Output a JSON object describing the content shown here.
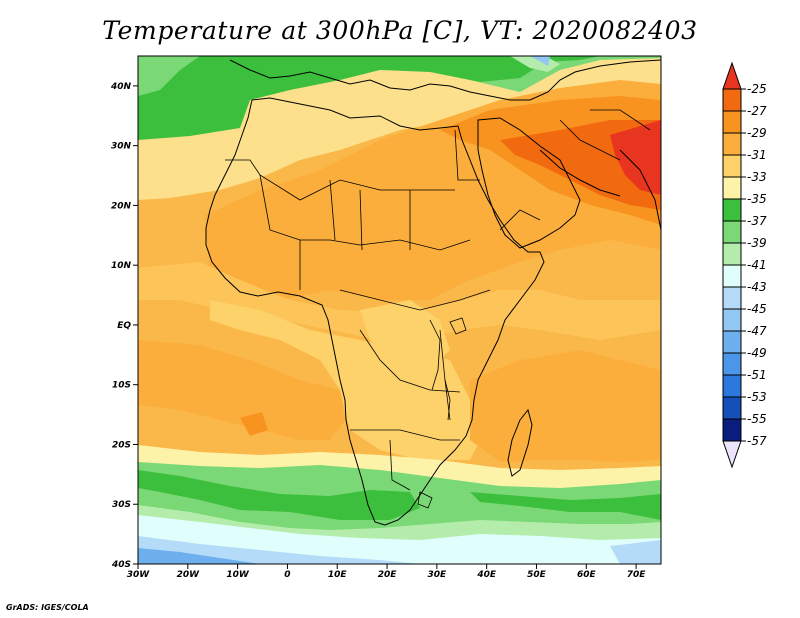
{
  "title": "Temperature at 300hPa [C], VT: 2020082403",
  "credit": "GrADS: IGES/COLA",
  "map": {
    "lon_range": [
      -30,
      75
    ],
    "lat_range": [
      -40,
      45
    ],
    "lon_ticks": [
      {
        "value": -30,
        "label": "30W"
      },
      {
        "value": -20,
        "label": "20W"
      },
      {
        "value": -10,
        "label": "10W"
      },
      {
        "value": 0,
        "label": "0"
      },
      {
        "value": 10,
        "label": "10E"
      },
      {
        "value": 20,
        "label": "20E"
      },
      {
        "value": 30,
        "label": "30E"
      },
      {
        "value": 40,
        "label": "40E"
      },
      {
        "value": 50,
        "label": "50E"
      },
      {
        "value": 60,
        "label": "60E"
      },
      {
        "value": 70,
        "label": "70E"
      }
    ],
    "lat_ticks": [
      {
        "value": 40,
        "label": "40N"
      },
      {
        "value": 30,
        "label": "30N"
      },
      {
        "value": 20,
        "label": "20N"
      },
      {
        "value": 10,
        "label": "10N"
      },
      {
        "value": 0,
        "label": "EQ"
      },
      {
        "value": -10,
        "label": "10S"
      },
      {
        "value": -20,
        "label": "20S"
      },
      {
        "value": -30,
        "label": "30S"
      },
      {
        "value": -40,
        "label": "40S"
      }
    ]
  },
  "colorbar": {
    "labels": [
      "-25",
      "-27",
      "-29",
      "-31",
      "-33",
      "-35",
      "-37",
      "-39",
      "-41",
      "-43",
      "-45",
      "-47",
      "-49",
      "-51",
      "-53",
      "-55",
      "-57"
    ],
    "colors": [
      "#e8351f",
      "#f26a0f",
      "#f99320",
      "#fbae3c",
      "#fdd26a",
      "#fdf3a8",
      "#3cbf3c",
      "#7ad876",
      "#b4ecac",
      "#e0fffc",
      "#b4dcf8",
      "#94c8f4",
      "#6eb0ee",
      "#4c96e8",
      "#2c78dc",
      "#1450b8",
      "#0a1c7c"
    ],
    "top_color": "#e8351f",
    "bottom_color": "#ece4fa"
  }
}
